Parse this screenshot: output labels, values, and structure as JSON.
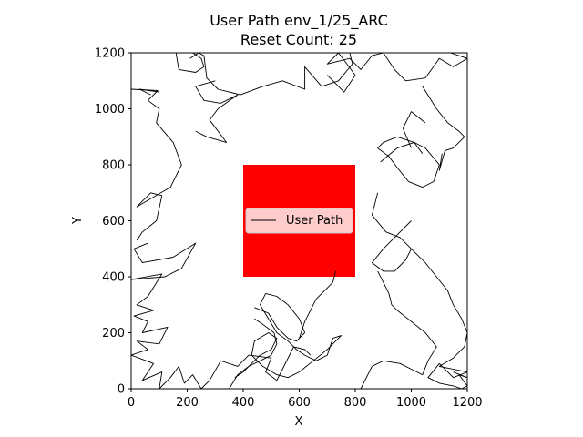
{
  "chart_data": {
    "type": "line",
    "title": "User Path env_1/25_ARC",
    "subtitle": "Reset Count: 25",
    "xlabel": "X",
    "ylabel": "Y",
    "xlim": [
      0,
      1200
    ],
    "ylim": [
      0,
      1200
    ],
    "xticks": [
      "0",
      "200",
      "400",
      "600",
      "800",
      "1000",
      "1200"
    ],
    "yticks": [
      "0",
      "200",
      "400",
      "600",
      "800",
      "1000",
      "1200"
    ],
    "grid": false,
    "legend_placement": "center",
    "obstacle": {
      "x": [
        400,
        800
      ],
      "y": [
        400,
        800
      ],
      "color": "#ff0000"
    },
    "series": [
      {
        "name": "User Path",
        "color": "#000000",
        "segments": [
          [
            [
              0,
              1070
            ],
            [
              95,
              1065
            ],
            [
              60,
              1030
            ],
            [
              100,
              1000
            ],
            [
              90,
              950
            ],
            [
              150,
              880
            ],
            [
              180,
              800
            ],
            [
              140,
              720
            ],
            [
              20,
              650
            ],
            [
              70,
              700
            ],
            [
              110,
              690
            ],
            [
              90,
              600
            ],
            [
              40,
              560
            ],
            [
              20,
              530
            ]
          ],
          [
            [
              70,
              1050
            ],
            [
              30,
              1070
            ],
            [
              100,
              1060
            ]
          ],
          [
            [
              60,
              520
            ],
            [
              10,
              500
            ],
            [
              40,
              450
            ],
            [
              150,
              470
            ],
            [
              230,
              520
            ],
            [
              180,
              430
            ],
            [
              120,
              400
            ],
            [
              0,
              390
            ],
            [
              110,
              410
            ],
            [
              60,
              330
            ],
            [
              20,
              300
            ],
            [
              80,
              280
            ],
            [
              10,
              260
            ],
            [
              60,
              240
            ],
            [
              40,
              200
            ],
            [
              130,
              220
            ],
            [
              100,
              160
            ],
            [
              20,
              170
            ],
            [
              60,
              140
            ],
            [
              0,
              120
            ],
            [
              80,
              90
            ],
            [
              40,
              30
            ],
            [
              110,
              60
            ],
            [
              100,
              0
            ],
            [
              140,
              40
            ],
            [
              170,
              80
            ],
            [
              190,
              20
            ],
            [
              220,
              50
            ],
            [
              250,
              0
            ],
            [
              280,
              30
            ],
            [
              320,
              100
            ],
            [
              380,
              80
            ],
            [
              420,
              120
            ],
            [
              500,
              110
            ],
            [
              480,
              60
            ],
            [
              520,
              30
            ],
            [
              540,
              70
            ],
            [
              580,
              150
            ],
            [
              620,
              140
            ],
            [
              640,
              120
            ]
          ],
          [
            [
              220,
              1200
            ],
            [
              250,
              1180
            ],
            [
              260,
              1150
            ],
            [
              230,
              1130
            ],
            [
              170,
              1140
            ],
            [
              160,
              1200
            ]
          ],
          [
            [
              210,
              1180
            ],
            [
              240,
              1200
            ],
            [
              260,
              1190
            ],
            [
              270,
              1110
            ],
            [
              310,
              1070
            ],
            [
              390,
              1050
            ],
            [
              470,
              1080
            ],
            [
              540,
              1100
            ],
            [
              620,
              1070
            ],
            [
              620,
              1150
            ],
            [
              680,
              1080
            ],
            [
              740,
              1100
            ],
            [
              790,
              1160
            ],
            [
              780,
              1200
            ]
          ],
          [
            [
              230,
              920
            ],
            [
              270,
              900
            ],
            [
              340,
              880
            ],
            [
              280,
              960
            ],
            [
              310,
              1000
            ],
            [
              380,
              1050
            ],
            [
              320,
              1020
            ],
            [
              260,
              1030
            ],
            [
              230,
              1080
            ],
            [
              300,
              1100
            ]
          ],
          [
            [
              700,
              1120
            ],
            [
              760,
              1060
            ],
            [
              800,
              1120
            ],
            [
              740,
              1200
            ],
            [
              700,
              1160
            ],
            [
              780,
              1180
            ],
            [
              820,
              1140
            ],
            [
              860,
              1190
            ],
            [
              900,
              1200
            ],
            [
              940,
              1140
            ],
            [
              980,
              1100
            ],
            [
              1050,
              1110
            ],
            [
              1100,
              1180
            ],
            [
              1150,
              1150
            ],
            [
              1200,
              1180
            ],
            [
              1140,
              1200
            ]
          ],
          [
            [
              1040,
              1080
            ],
            [
              1090,
              1000
            ],
            [
              1130,
              950
            ],
            [
              1170,
              920
            ],
            [
              1190,
              900
            ],
            [
              1150,
              860
            ],
            [
              1120,
              850
            ],
            [
              1100,
              780
            ],
            [
              1110,
              840
            ]
          ],
          [
            [
              890,
              810
            ],
            [
              950,
              860
            ],
            [
              1010,
              880
            ],
            [
              1050,
              860
            ],
            [
              1100,
              800
            ],
            [
              1080,
              740
            ],
            [
              1040,
              720
            ],
            [
              990,
              740
            ],
            [
              950,
              790
            ],
            [
              920,
              830
            ],
            [
              880,
              860
            ],
            [
              900,
              880
            ],
            [
              950,
              900
            ],
            [
              1010,
              880
            ],
            [
              1040,
              840
            ]
          ],
          [
            [
              1000,
              860
            ],
            [
              970,
              930
            ],
            [
              1000,
              990
            ],
            [
              1050,
              950
            ]
          ],
          [
            [
              880,
              700
            ],
            [
              860,
              620
            ],
            [
              910,
              560
            ],
            [
              960,
              540
            ],
            [
              1000,
              500
            ],
            [
              980,
              460
            ],
            [
              940,
              420
            ],
            [
              900,
              420
            ],
            [
              860,
              450
            ],
            [
              900,
              500
            ],
            [
              950,
              550
            ],
            [
              1000,
              600
            ]
          ],
          [
            [
              1000,
              500
            ],
            [
              1050,
              450
            ],
            [
              1090,
              400
            ],
            [
              1130,
              350
            ],
            [
              1150,
              300
            ],
            [
              1180,
              250
            ],
            [
              1200,
              200
            ],
            [
              1190,
              150
            ],
            [
              1150,
              110
            ],
            [
              1100,
              80
            ],
            [
              1200,
              60
            ],
            [
              1150,
              40
            ],
            [
              1100,
              90
            ],
            [
              1060,
              40
            ],
            [
              1100,
              20
            ],
            [
              1150,
              10
            ],
            [
              1180,
              0
            ],
            [
              1200,
              10
            ],
            [
              1170,
              50
            ],
            [
              1200,
              40
            ],
            [
              1150,
              60
            ]
          ],
          [
            [
              820,
              0
            ],
            [
              860,
              80
            ],
            [
              900,
              100
            ],
            [
              960,
              90
            ],
            [
              1000,
              70
            ],
            [
              1040,
              50
            ],
            [
              1060,
              100
            ],
            [
              1090,
              150
            ],
            [
              1050,
              200
            ],
            [
              1000,
              240
            ],
            [
              950,
              280
            ],
            [
              930,
              300
            ],
            [
              920,
              340
            ],
            [
              900,
              380
            ],
            [
              880,
              420
            ]
          ],
          [
            [
              440,
              290
            ],
            [
              490,
              270
            ],
            [
              520,
              220
            ],
            [
              560,
              180
            ],
            [
              590,
              170
            ],
            [
              620,
              200
            ],
            [
              600,
              250
            ],
            [
              560,
              300
            ],
            [
              520,
              330
            ],
            [
              480,
              340
            ],
            [
              460,
              300
            ],
            [
              490,
              250
            ],
            [
              520,
              200
            ],
            [
              560,
              170
            ],
            [
              590,
              140
            ],
            [
              620,
              120
            ],
            [
              660,
              100
            ],
            [
              700,
              120
            ],
            [
              720,
              180
            ],
            [
              750,
              190
            ],
            [
              700,
              140
            ],
            [
              650,
              100
            ],
            [
              600,
              60
            ],
            [
              560,
              40
            ],
            [
              520,
              50
            ],
            [
              470,
              80
            ],
            [
              430,
              120
            ],
            [
              440,
              170
            ],
            [
              490,
              200
            ],
            [
              520,
              180
            ],
            [
              500,
              140
            ],
            [
              460,
              120
            ],
            [
              430,
              90
            ],
            [
              400,
              60
            ],
            [
              370,
              40
            ]
          ],
          [
            [
              350,
              0
            ],
            [
              380,
              50
            ],
            [
              420,
              80
            ],
            [
              460,
              100
            ],
            [
              500,
              120
            ],
            [
              520,
              160
            ],
            [
              510,
              200
            ],
            [
              470,
              230
            ],
            [
              440,
              250
            ]
          ],
          [
            [
              600,
              180
            ],
            [
              620,
              240
            ],
            [
              640,
              280
            ],
            [
              660,
              320
            ],
            [
              700,
              360
            ],
            [
              720,
              380
            ],
            [
              730,
              420
            ]
          ]
        ]
      }
    ]
  }
}
